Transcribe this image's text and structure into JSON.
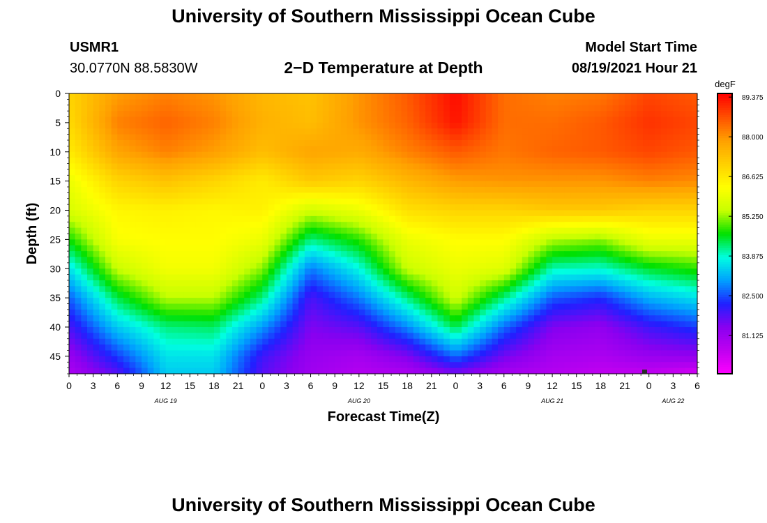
{
  "header": {
    "title_top": "University of Southern Mississippi Ocean Cube",
    "title_bottom": "University of Southern Mississippi Ocean Cube",
    "station_id": "USMR1",
    "station_coords": "30.0770N  88.5830W",
    "plot_title": "2−D Temperature at Depth",
    "model_start_label": "Model Start Time",
    "model_start_value": "08/19/2021 Hour 21"
  },
  "colors": {
    "scale": [
      "#ff00ff",
      "#c000f0",
      "#8a00f0",
      "#2020ff",
      "#00a0ff",
      "#00ffe0",
      "#00e000",
      "#c8ff00",
      "#ffff00",
      "#ffd000",
      "#ffa000",
      "#ff5000",
      "#ff0000"
    ]
  },
  "chart_data": {
    "type": "heatmap",
    "xlabel": "Forecast Time(Z)",
    "ylabel": "Depth (ft)",
    "colorbar_unit": "degF",
    "x_tick_labels": [
      "0",
      "3",
      "6",
      "9",
      "12",
      "15",
      "18",
      "21",
      "0",
      "3",
      "6",
      "9",
      "12",
      "15",
      "18",
      "21",
      "0",
      "3",
      "6",
      "9",
      "12",
      "15",
      "18",
      "21",
      "0",
      "3",
      "6"
    ],
    "x_range_hours": [
      0,
      78
    ],
    "date_labels": [
      {
        "label": "AUG 19",
        "hour": 12
      },
      {
        "label": "AUG 20",
        "hour": 36
      },
      {
        "label": "AUG 21",
        "hour": 60
      },
      {
        "label": "AUG 22",
        "hour": 75
      }
    ],
    "y_ticks": [
      0,
      5,
      10,
      15,
      20,
      25,
      30,
      35,
      40,
      45
    ],
    "y_tick_labels": [
      "0",
      "5",
      "10",
      "15",
      "20",
      "25",
      "30",
      "35",
      "40",
      "45"
    ],
    "ylim": [
      0,
      48
    ],
    "colorbar_ticks": [
      89.375,
      88.0,
      86.625,
      85.25,
      83.875,
      82.5,
      81.125
    ],
    "colorbar_tick_labels": [
      "89.375",
      "88.000",
      "86.625",
      "85.250",
      "83.875",
      "82.500",
      "81.125"
    ],
    "value_range": [
      79.8,
      89.5
    ],
    "depth_levels_ft": [
      0,
      5,
      10,
      15,
      20,
      25,
      30,
      35,
      40,
      45,
      48
    ],
    "time_hours": [
      0,
      6,
      12,
      18,
      24,
      30,
      36,
      42,
      48,
      54,
      60,
      66,
      72,
      78
    ],
    "temperature_degF": [
      [
        87.0,
        87.9,
        88.2,
        88.0,
        87.5,
        87.3,
        88.0,
        88.6,
        89.4,
        88.4,
        88.2,
        88.3,
        88.8,
        88.6
      ],
      [
        86.9,
        88.2,
        88.5,
        88.2,
        87.6,
        87.4,
        88.0,
        88.5,
        89.3,
        88.4,
        88.4,
        88.6,
        89.0,
        88.8
      ],
      [
        86.6,
        87.8,
        88.2,
        87.9,
        87.4,
        87.8,
        87.7,
        88.2,
        88.6,
        88.3,
        88.5,
        88.6,
        88.8,
        88.6
      ],
      [
        86.0,
        87.0,
        87.3,
        87.0,
        86.6,
        87.2,
        87.0,
        87.5,
        87.9,
        88.0,
        88.0,
        88.0,
        88.2,
        88.1
      ],
      [
        85.7,
        86.4,
        86.5,
        86.4,
        86.5,
        85.6,
        86.0,
        86.8,
        87.0,
        87.0,
        87.2,
        87.2,
        87.0,
        87.0
      ],
      [
        84.7,
        86.2,
        86.3,
        86.3,
        86.0,
        84.2,
        84.8,
        86.0,
        86.3,
        86.3,
        85.4,
        85.2,
        86.0,
        86.0
      ],
      [
        83.6,
        85.5,
        86.1,
        86.1,
        85.2,
        82.8,
        83.8,
        85.5,
        86.0,
        85.8,
        84.0,
        83.9,
        84.5,
        84.8
      ],
      [
        82.6,
        84.4,
        85.4,
        85.4,
        84.2,
        81.9,
        82.8,
        84.2,
        85.6,
        84.2,
        82.6,
        82.3,
        83.2,
        83.6
      ],
      [
        81.9,
        83.4,
        84.2,
        84.3,
        83.0,
        81.5,
        81.8,
        82.9,
        84.4,
        82.7,
        81.5,
        81.3,
        82.0,
        82.4
      ],
      [
        81.2,
        82.4,
        83.6,
        83.6,
        82.0,
        81.2,
        81.0,
        81.5,
        82.7,
        81.6,
        81.0,
        80.9,
        81.2,
        81.3
      ],
      [
        80.9,
        81.8,
        83.4,
        83.4,
        81.8,
        81.1,
        80.8,
        80.9,
        81.5,
        81.0,
        80.8,
        80.6,
        80.6,
        80.3
      ]
    ]
  }
}
